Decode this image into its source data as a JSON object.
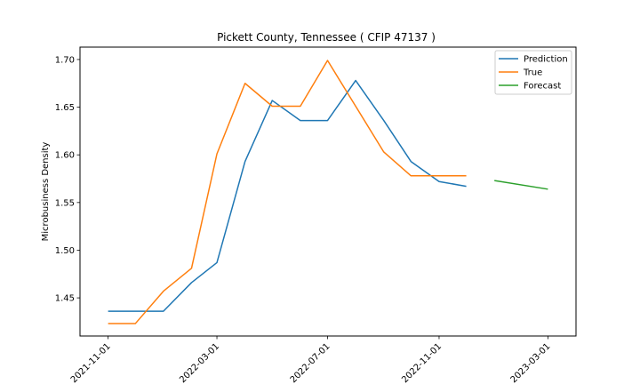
{
  "chart_data": {
    "type": "line",
    "title": "Pickett County, Tennessee ( CFIP 47137 )",
    "xlabel": "",
    "ylabel": "Microbusiness Density",
    "x_ticks": [
      "2021-11-01",
      "2022-03-01",
      "2022-07-01",
      "2022-11-01",
      "2023-03-01"
    ],
    "y_ticks": [
      "1.45",
      "1.50",
      "1.55",
      "1.60",
      "1.65",
      "1.70"
    ],
    "ylim": [
      1.41,
      1.713
    ],
    "xlim": [
      "2021-10-01",
      "2023-04-01"
    ],
    "legend_position": "top-right",
    "grid": false,
    "series": [
      {
        "name": "Prediction",
        "color": "#1f77b4",
        "x": [
          "2021-11-01",
          "2021-12-01",
          "2022-01-01",
          "2022-02-01",
          "2022-03-01",
          "2022-04-01",
          "2022-05-01",
          "2022-06-01",
          "2022-07-01",
          "2022-08-01",
          "2022-09-01",
          "2022-10-01",
          "2022-11-01",
          "2022-12-01"
        ],
        "y": [
          1.436,
          1.436,
          1.436,
          1.466,
          1.487,
          1.593,
          1.657,
          1.636,
          1.636,
          1.678,
          1.636,
          1.593,
          1.572,
          1.567
        ]
      },
      {
        "name": "True",
        "color": "#ff7f0e",
        "x": [
          "2021-11-01",
          "2021-12-01",
          "2022-01-01",
          "2022-02-01",
          "2022-03-01",
          "2022-04-01",
          "2022-05-01",
          "2022-06-01",
          "2022-07-01",
          "2022-08-01",
          "2022-09-01",
          "2022-10-01",
          "2022-11-01",
          "2022-12-01"
        ],
        "y": [
          1.423,
          1.423,
          1.457,
          1.481,
          1.601,
          1.675,
          1.651,
          1.651,
          1.699,
          1.651,
          1.603,
          1.578,
          1.578,
          1.578
        ]
      },
      {
        "name": "Forecast",
        "color": "#2ca02c",
        "x": [
          "2023-01-01",
          "2023-03-01"
        ],
        "y": [
          1.573,
          1.564
        ]
      }
    ]
  }
}
